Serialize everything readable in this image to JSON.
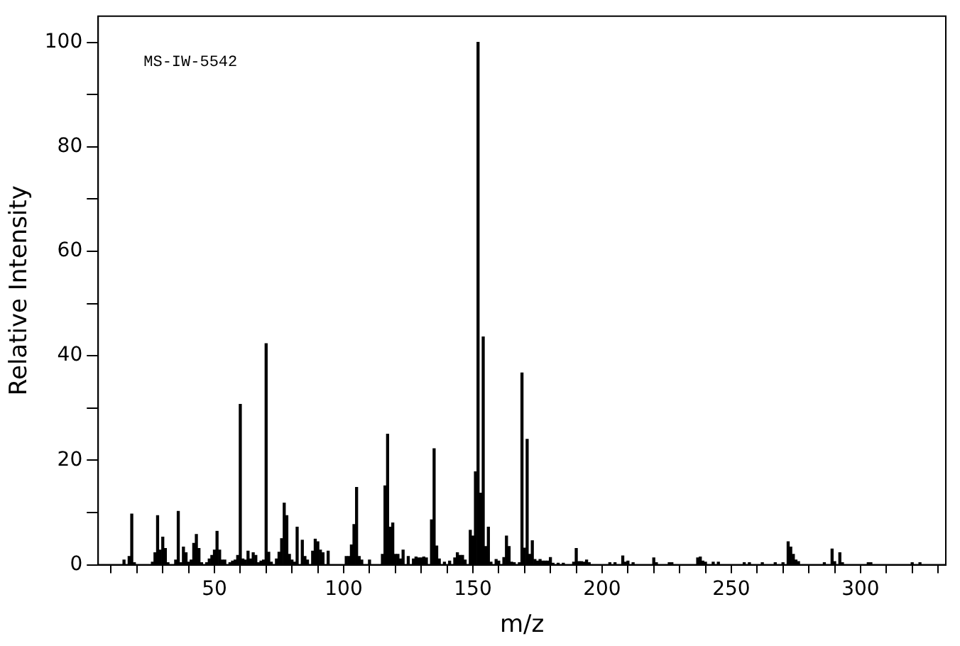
{
  "chart_data": {
    "type": "bar",
    "xlabel": "m/z",
    "ylabel": "Relative Intensity",
    "color": "#000000",
    "annotations": [
      "MS-IW-5542"
    ],
    "x": [
      15,
      17,
      18,
      19,
      26,
      27,
      28,
      29,
      30,
      31,
      32,
      35,
      36,
      37,
      38,
      39,
      40,
      41,
      42,
      43,
      44,
      45,
      47,
      48,
      49,
      50,
      51,
      52,
      53,
      54,
      56,
      57,
      58,
      59,
      60,
      61,
      62,
      63,
      64,
      65,
      66,
      67,
      68,
      69,
      70,
      71,
      72,
      74,
      75,
      76,
      77,
      78,
      79,
      80,
      81,
      82,
      84,
      85,
      86,
      88,
      89,
      90,
      91,
      92,
      94,
      101,
      102,
      103,
      104,
      105,
      106,
      107,
      110,
      115,
      116,
      117,
      118,
      119,
      120,
      121,
      122,
      123,
      125,
      127,
      128,
      129,
      130,
      131,
      132,
      134,
      135,
      136,
      137,
      139,
      141,
      143,
      144,
      145,
      146,
      147,
      149,
      150,
      151,
      152,
      153,
      154,
      155,
      156,
      157,
      159,
      160,
      162,
      163,
      164,
      165,
      166,
      168,
      169,
      170,
      171,
      172,
      173,
      174,
      175,
      176,
      177,
      178,
      179,
      180,
      181,
      183,
      185,
      189,
      190,
      191,
      192,
      193,
      194,
      195,
      203,
      205,
      208,
      209,
      210,
      212,
      220,
      221,
      226,
      227,
      237,
      238,
      239,
      240,
      243,
      245,
      255,
      257,
      262,
      267,
      270,
      272,
      273,
      274,
      275,
      276,
      286,
      289,
      290,
      292,
      293,
      303,
      304,
      320,
      323
    ],
    "values": [
      0.9,
      1.6,
      9.7,
      0.4,
      0.5,
      2.3,
      9.4,
      2.8,
      5.3,
      3.1,
      0.4,
      0.9,
      10.2,
      0.4,
      3.4,
      2.3,
      0.5,
      0.9,
      4.1,
      5.8,
      3.1,
      0.4,
      0.4,
      1.1,
      1.8,
      2.8,
      6.4,
      2.8,
      0.9,
      0.9,
      0.4,
      0.7,
      0.9,
      1.8,
      30.7,
      1.1,
      0.9,
      2.6,
      1.1,
      2.3,
      1.8,
      0.4,
      0.7,
      0.9,
      42.3,
      2.4,
      0.5,
      1.1,
      2.4,
      5.0,
      11.8,
      9.4,
      2.0,
      0.9,
      0.5,
      7.2,
      4.7,
      1.6,
      0.9,
      2.6,
      4.9,
      4.4,
      2.8,
      2.3,
      2.6,
      1.6,
      1.6,
      3.8,
      7.7,
      14.8,
      1.6,
      0.9,
      0.9,
      2.0,
      15.1,
      25.0,
      7.2,
      8.0,
      2.0,
      2.0,
      1.1,
      2.8,
      1.6,
      1.1,
      1.5,
      1.3,
      1.3,
      1.5,
      1.3,
      8.6,
      22.2,
      3.6,
      1.1,
      0.5,
      0.7,
      1.3,
      2.3,
      1.8,
      1.8,
      0.9,
      6.6,
      5.5,
      17.8,
      100,
      13.7,
      43.6,
      3.5,
      7.2,
      0.5,
      1.0,
      0.7,
      1.4,
      5.5,
      3.5,
      0.5,
      0.4,
      0.4,
      36.7,
      3.2,
      24.0,
      2.0,
      4.6,
      1.0,
      0.7,
      1.0,
      0.7,
      0.7,
      0.7,
      1.4,
      0.3,
      0.3,
      0.3,
      0.5,
      3.1,
      0.6,
      0.6,
      0.5,
      0.9,
      0.4,
      0.4,
      0.4,
      1.7,
      0.5,
      0.7,
      0.4,
      1.3,
      0.4,
      0.4,
      0.4,
      1.3,
      1.5,
      0.7,
      0.5,
      0.5,
      0.5,
      0.4,
      0.4,
      0.4,
      0.4,
      0.4,
      4.4,
      3.4,
      2.0,
      0.9,
      0.6,
      0.4,
      3.0,
      0.6,
      2.3,
      0.4,
      0.4,
      0.4,
      0.4,
      0.4
    ],
    "xlim": [
      5,
      333
    ],
    "xticks": [
      {
        "value": 10,
        "label": null
      },
      {
        "value": 20,
        "label": null
      },
      {
        "value": 30,
        "label": null
      },
      {
        "value": 40,
        "label": null
      },
      50,
      {
        "value": 60,
        "label": null
      },
      {
        "value": 70,
        "label": null
      },
      {
        "value": 80,
        "label": null
      },
      {
        "value": 90,
        "label": null
      },
      100,
      {
        "value": 110,
        "label": null
      },
      {
        "value": 120,
        "label": null
      },
      {
        "value": 130,
        "label": null
      },
      {
        "value": 140,
        "label": null
      },
      150,
      {
        "value": 160,
        "label": null
      },
      {
        "value": 170,
        "label": null
      },
      {
        "value": 180,
        "label": null
      },
      {
        "value": 190,
        "label": null
      },
      200,
      {
        "value": 210,
        "label": null
      },
      {
        "value": 220,
        "label": null
      },
      {
        "value": 230,
        "label": null
      },
      {
        "value": 240,
        "label": null
      },
      250,
      {
        "value": 260,
        "label": null
      },
      {
        "value": 270,
        "label": null
      },
      {
        "value": 280,
        "label": null
      },
      {
        "value": 290,
        "label": null
      },
      300,
      {
        "value": 310,
        "label": null
      },
      {
        "value": 320,
        "label": null
      },
      {
        "value": 330,
        "label": null
      }
    ],
    "ylim": [
      0,
      105
    ],
    "yticks": [
      0,
      {
        "value": 10,
        "label": null
      },
      20,
      {
        "value": 30,
        "label": null
      },
      40,
      {
        "value": 50,
        "label": null
      },
      60,
      {
        "value": 70,
        "label": null
      },
      80,
      {
        "value": 90,
        "label": null
      },
      100
    ]
  }
}
